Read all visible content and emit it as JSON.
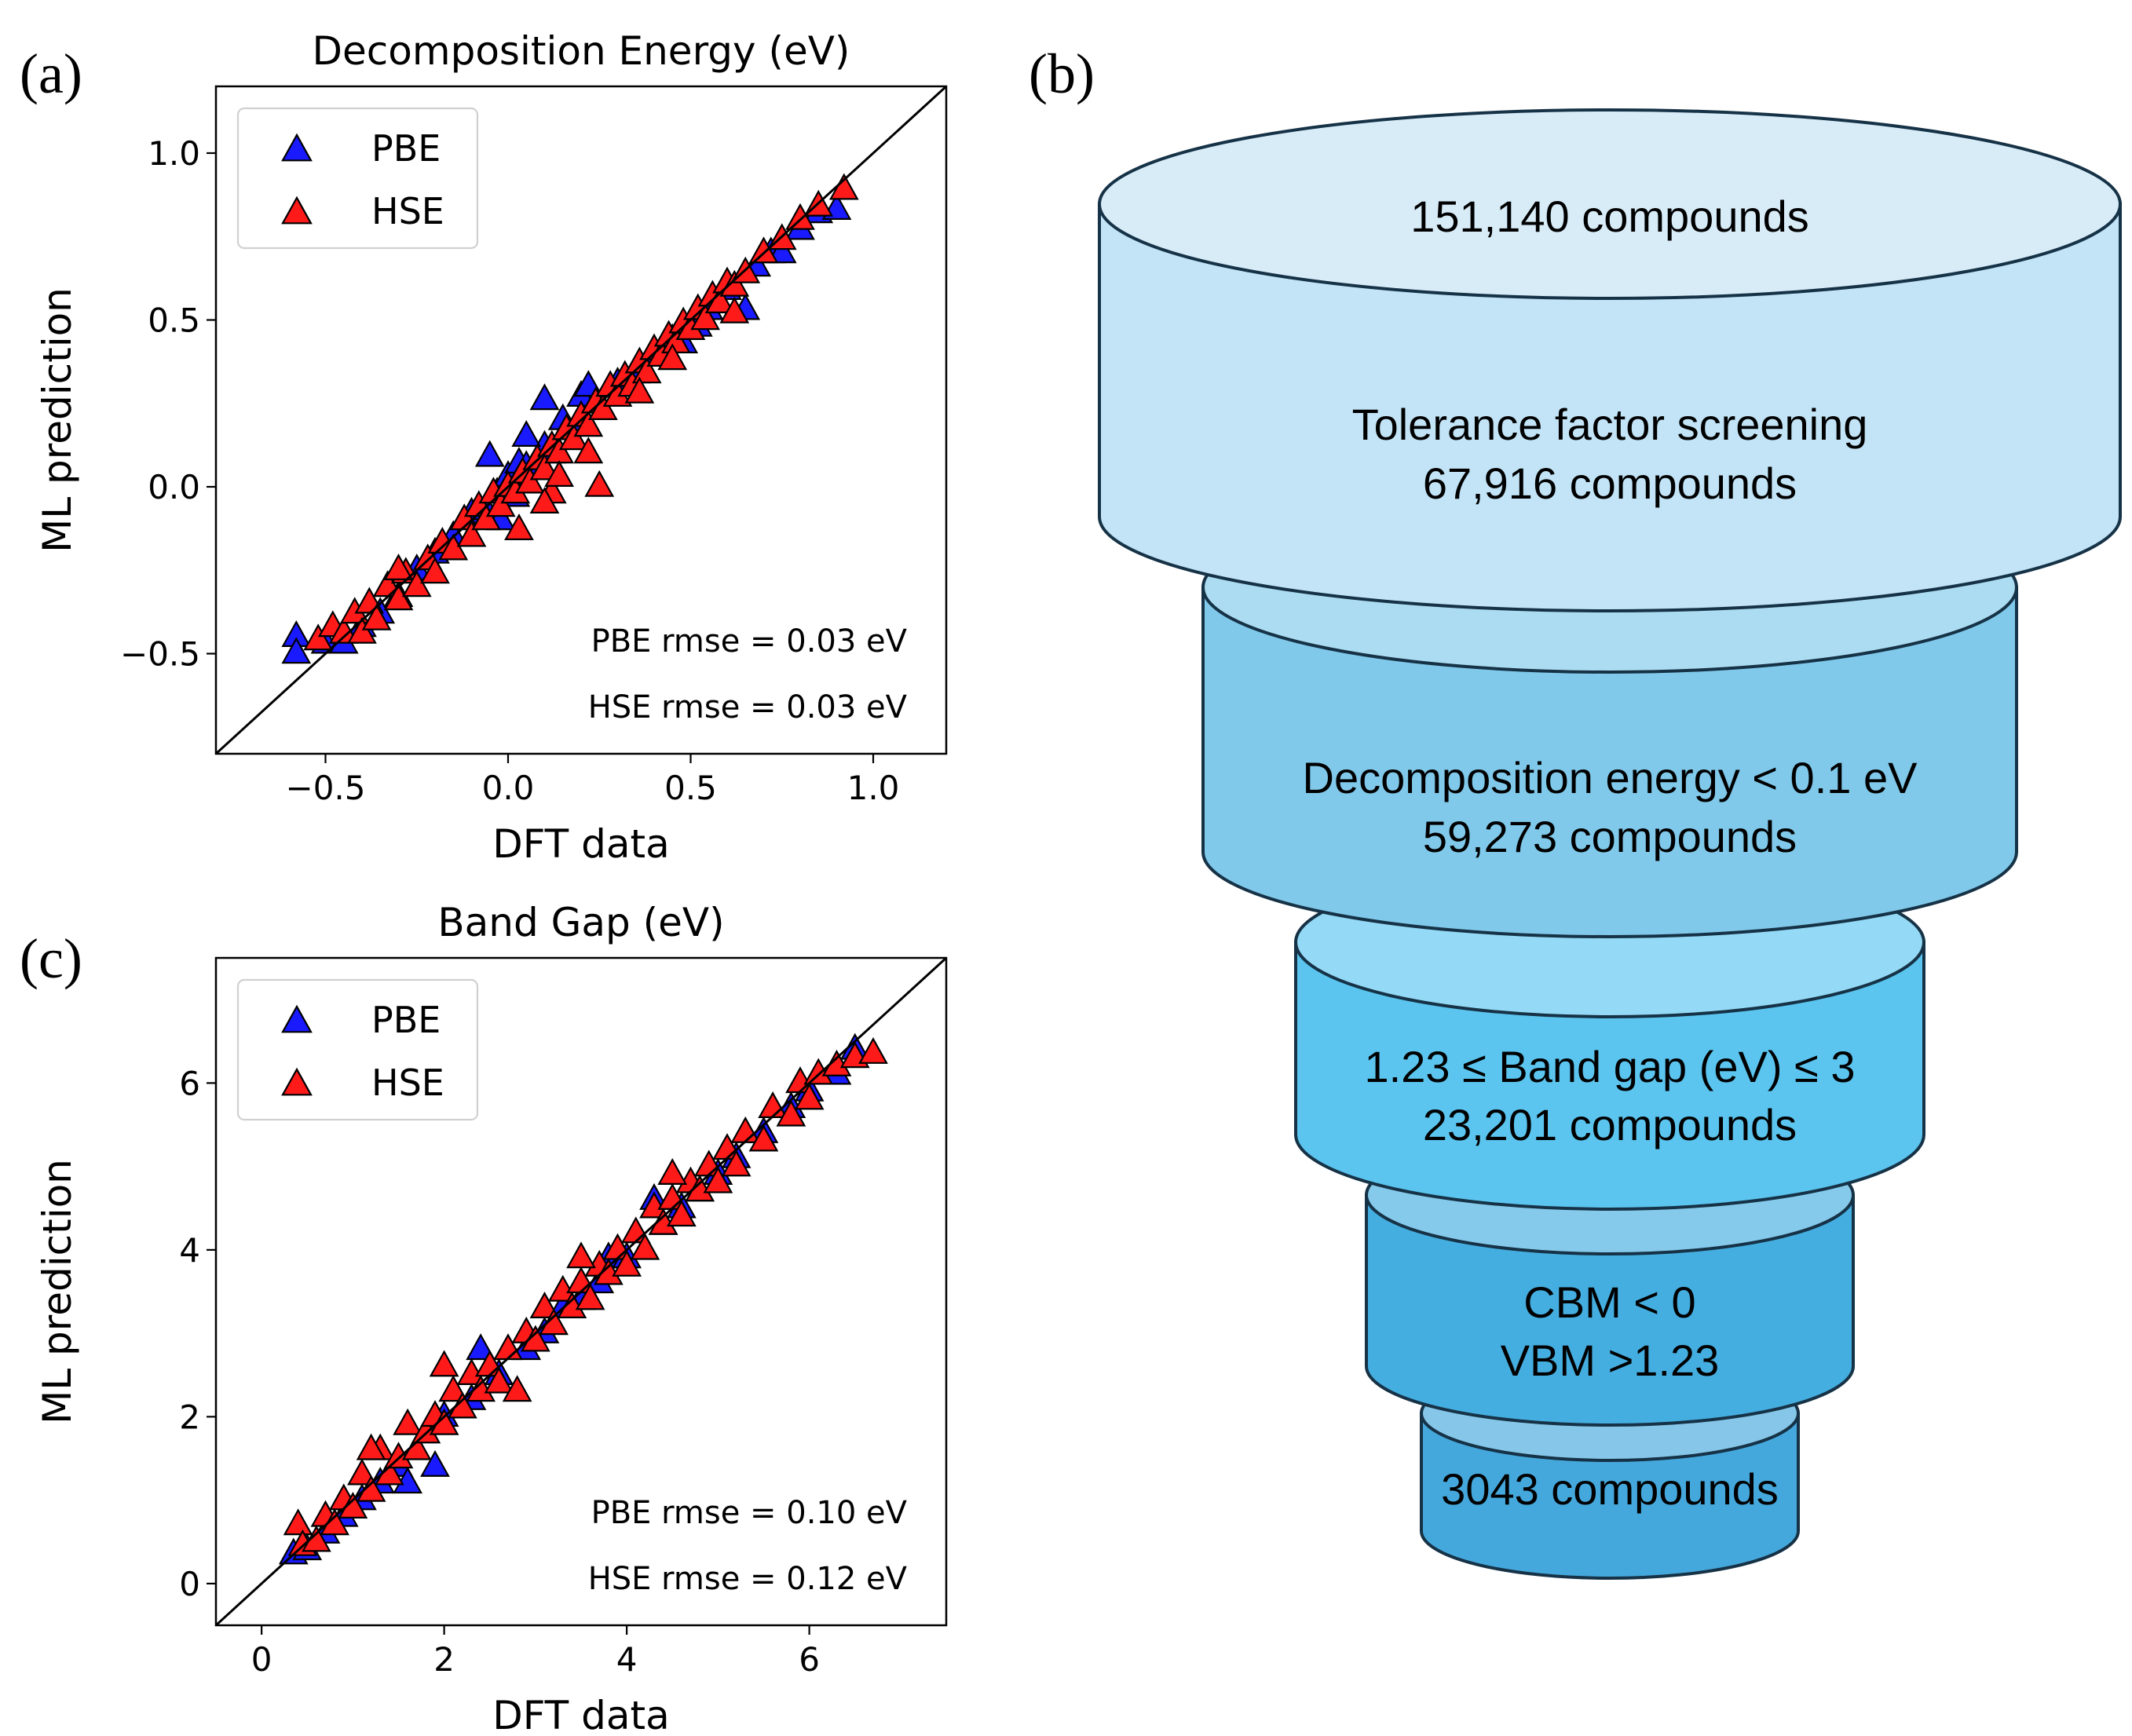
{
  "panel_labels": {
    "a": "(a)",
    "b": "(b)",
    "c": "(c)"
  },
  "chart_data": [
    {
      "id": "a",
      "type": "scatter",
      "title": "Decomposition Energy (eV)",
      "xlabel": "DFT data",
      "ylabel": "ML prediction",
      "xlim": [
        -0.8,
        1.2
      ],
      "ylim": [
        -0.8,
        1.2
      ],
      "xticks": [
        -0.5,
        0.0,
        0.5,
        1.0
      ],
      "xtick_labels": [
        "−0.5",
        "0.0",
        "0.5",
        "1.0"
      ],
      "yticks": [
        -0.5,
        0.0,
        0.5,
        1.0
      ],
      "ytick_labels": [
        "−0.5",
        "0.0",
        "0.5",
        "1.0"
      ],
      "diagonal": true,
      "legend": {
        "placement": "top-left",
        "entries": [
          "PBE",
          "HSE"
        ]
      },
      "annotations": [
        "PBE rmse = 0.03 eV",
        "HSE rmse = 0.03 eV"
      ],
      "series": [
        {
          "name": "PBE",
          "color": "#1a1aff",
          "points": [
            [
              -0.58,
              -0.45
            ],
            [
              -0.58,
              -0.5
            ],
            [
              -0.5,
              -0.47
            ],
            [
              -0.45,
              -0.47
            ],
            [
              -0.4,
              -0.42
            ],
            [
              -0.35,
              -0.38
            ],
            [
              -0.3,
              -0.33
            ],
            [
              -0.25,
              -0.25
            ],
            [
              -0.2,
              -0.2
            ],
            [
              -0.15,
              -0.15
            ],
            [
              -0.1,
              -0.08
            ],
            [
              -0.06,
              -0.07
            ],
            [
              -0.03,
              -0.02
            ],
            [
              -0.05,
              0.09
            ],
            [
              0.0,
              0.03
            ],
            [
              0.03,
              0.07
            ],
            [
              0.05,
              0.06
            ],
            [
              0.1,
              0.12
            ],
            [
              0.1,
              0.26
            ],
            [
              0.05,
              0.15
            ],
            [
              0.15,
              0.2
            ],
            [
              0.2,
              0.19
            ],
            [
              0.2,
              0.27
            ],
            [
              0.22,
              0.3
            ],
            [
              0.3,
              0.31
            ],
            [
              0.35,
              0.34
            ],
            [
              0.4,
              0.4
            ],
            [
              0.45,
              0.44
            ],
            [
              0.48,
              0.43
            ],
            [
              0.52,
              0.48
            ],
            [
              0.55,
              0.53
            ],
            [
              0.6,
              0.59
            ],
            [
              0.65,
              0.53
            ],
            [
              0.68,
              0.66
            ],
            [
              0.72,
              0.7
            ],
            [
              0.75,
              0.7
            ],
            [
              0.8,
              0.77
            ],
            [
              0.85,
              0.82
            ],
            [
              0.9,
              0.83
            ],
            [
              -0.02,
              -0.1
            ],
            [
              0.02,
              -0.03
            ],
            [
              0.12,
              0.1
            ]
          ]
        },
        {
          "name": "HSE",
          "color": "#ff1a1a",
          "points": [
            [
              -0.52,
              -0.46
            ],
            [
              -0.48,
              -0.42
            ],
            [
              -0.45,
              -0.44
            ],
            [
              -0.42,
              -0.38
            ],
            [
              -0.4,
              -0.44
            ],
            [
              -0.38,
              -0.35
            ],
            [
              -0.36,
              -0.4
            ],
            [
              -0.33,
              -0.3
            ],
            [
              -0.3,
              -0.34
            ],
            [
              -0.28,
              -0.26
            ],
            [
              -0.25,
              -0.3
            ],
            [
              -0.22,
              -0.22
            ],
            [
              -0.2,
              -0.26
            ],
            [
              -0.18,
              -0.17
            ],
            [
              -0.15,
              -0.19
            ],
            [
              -0.12,
              -0.1
            ],
            [
              -0.1,
              -0.15
            ],
            [
              -0.08,
              -0.06
            ],
            [
              -0.06,
              -0.1
            ],
            [
              -0.04,
              -0.02
            ],
            [
              -0.02,
              -0.06
            ],
            [
              0.0,
              0.0
            ],
            [
              0.02,
              -0.02
            ],
            [
              0.04,
              0.04
            ],
            [
              0.06,
              0.01
            ],
            [
              0.08,
              0.08
            ],
            [
              0.1,
              0.05
            ],
            [
              0.12,
              0.12
            ],
            [
              0.14,
              0.1
            ],
            [
              0.16,
              0.17
            ],
            [
              0.18,
              0.14
            ],
            [
              0.2,
              0.21
            ],
            [
              0.22,
              0.18
            ],
            [
              0.24,
              0.25
            ],
            [
              0.26,
              0.23
            ],
            [
              0.28,
              0.3
            ],
            [
              0.3,
              0.27
            ],
            [
              0.32,
              0.33
            ],
            [
              0.34,
              0.3
            ],
            [
              0.36,
              0.37
            ],
            [
              0.38,
              0.34
            ],
            [
              0.4,
              0.41
            ],
            [
              0.42,
              0.39
            ],
            [
              0.44,
              0.45
            ],
            [
              0.46,
              0.43
            ],
            [
              0.48,
              0.49
            ],
            [
              0.5,
              0.47
            ],
            [
              0.52,
              0.53
            ],
            [
              0.54,
              0.5
            ],
            [
              0.56,
              0.57
            ],
            [
              0.58,
              0.55
            ],
            [
              0.6,
              0.61
            ],
            [
              0.62,
              0.6
            ],
            [
              0.65,
              0.64
            ],
            [
              0.7,
              0.7
            ],
            [
              0.75,
              0.74
            ],
            [
              0.8,
              0.8
            ],
            [
              0.85,
              0.84
            ],
            [
              0.92,
              0.89
            ],
            [
              0.12,
              -0.02
            ],
            [
              0.22,
              0.1
            ],
            [
              0.25,
              0.0
            ],
            [
              0.03,
              -0.13
            ],
            [
              0.14,
              0.03
            ],
            [
              -0.3,
              -0.25
            ],
            [
              0.45,
              0.38
            ],
            [
              0.62,
              0.52
            ],
            [
              0.1,
              -0.05
            ],
            [
              0.36,
              0.28
            ]
          ]
        }
      ]
    },
    {
      "id": "c",
      "type": "scatter",
      "title": "Band Gap (eV)",
      "xlabel": "DFT data",
      "ylabel": "ML prediction",
      "xlim": [
        -0.5,
        7.5
      ],
      "ylim": [
        -0.5,
        7.5
      ],
      "xticks": [
        0,
        2,
        4,
        6
      ],
      "xtick_labels": [
        "0",
        "2",
        "4",
        "6"
      ],
      "yticks": [
        0,
        2,
        4,
        6
      ],
      "ytick_labels": [
        "0",
        "2",
        "4",
        "6"
      ],
      "diagonal": true,
      "legend": {
        "placement": "top-left",
        "entries": [
          "PBE",
          "HSE"
        ]
      },
      "annotations": [
        "PBE rmse = 0.10 eV",
        "HSE rmse = 0.12 eV"
      ],
      "series": [
        {
          "name": "PBE",
          "color": "#1a1aff",
          "points": [
            [
              0.35,
              0.35
            ],
            [
              0.5,
              0.4
            ],
            [
              0.7,
              0.6
            ],
            [
              0.9,
              0.8
            ],
            [
              1.1,
              1.0
            ],
            [
              1.3,
              1.2
            ],
            [
              1.5,
              1.4
            ],
            [
              1.6,
              1.2
            ],
            [
              1.9,
              1.4
            ],
            [
              2.0,
              2.0
            ],
            [
              2.3,
              2.2
            ],
            [
              2.4,
              2.8
            ],
            [
              2.6,
              2.5
            ],
            [
              2.9,
              2.8
            ],
            [
              3.1,
              3.0
            ],
            [
              3.3,
              3.3
            ],
            [
              3.5,
              3.4
            ],
            [
              3.7,
              3.6
            ],
            [
              3.8,
              3.9
            ],
            [
              4.0,
              3.9
            ],
            [
              4.3,
              4.6
            ],
            [
              4.4,
              4.3
            ],
            [
              4.6,
              4.5
            ],
            [
              4.8,
              4.7
            ],
            [
              5.0,
              4.9
            ],
            [
              5.2,
              5.1
            ],
            [
              5.5,
              5.4
            ],
            [
              5.8,
              5.7
            ],
            [
              6.0,
              5.9
            ],
            [
              6.3,
              6.1
            ],
            [
              6.5,
              6.4
            ]
          ]
        },
        {
          "name": "HSE",
          "color": "#ff1a1a",
          "points": [
            [
              0.4,
              0.7
            ],
            [
              0.45,
              0.45
            ],
            [
              0.6,
              0.5
            ],
            [
              0.7,
              0.8
            ],
            [
              0.8,
              0.7
            ],
            [
              0.9,
              1.0
            ],
            [
              1.0,
              0.9
            ],
            [
              1.1,
              1.3
            ],
            [
              1.2,
              1.1
            ],
            [
              1.3,
              1.6
            ],
            [
              1.4,
              1.3
            ],
            [
              1.5,
              1.5
            ],
            [
              1.6,
              1.9
            ],
            [
              1.7,
              1.6
            ],
            [
              1.8,
              1.8
            ],
            [
              1.9,
              2.0
            ],
            [
              2.0,
              1.9
            ],
            [
              2.1,
              2.3
            ],
            [
              2.2,
              2.1
            ],
            [
              2.3,
              2.5
            ],
            [
              2.4,
              2.3
            ],
            [
              2.5,
              2.6
            ],
            [
              2.6,
              2.4
            ],
            [
              2.7,
              2.8
            ],
            [
              2.8,
              2.3
            ],
            [
              2.9,
              3.0
            ],
            [
              3.0,
              2.9
            ],
            [
              3.1,
              3.3
            ],
            [
              3.2,
              3.1
            ],
            [
              3.3,
              3.5
            ],
            [
              3.4,
              3.3
            ],
            [
              3.5,
              3.6
            ],
            [
              3.6,
              3.4
            ],
            [
              3.7,
              3.8
            ],
            [
              3.8,
              3.7
            ],
            [
              3.9,
              4.0
            ],
            [
              4.0,
              3.8
            ],
            [
              4.1,
              4.2
            ],
            [
              4.2,
              4.0
            ],
            [
              4.3,
              4.5
            ],
            [
              4.4,
              4.3
            ],
            [
              4.5,
              4.6
            ],
            [
              4.6,
              4.4
            ],
            [
              4.7,
              4.8
            ],
            [
              4.8,
              4.7
            ],
            [
              4.9,
              5.0
            ],
            [
              5.0,
              4.8
            ],
            [
              5.1,
              5.2
            ],
            [
              5.2,
              5.0
            ],
            [
              5.3,
              5.4
            ],
            [
              5.5,
              5.3
            ],
            [
              5.6,
              5.7
            ],
            [
              5.8,
              5.6
            ],
            [
              5.9,
              6.0
            ],
            [
              6.0,
              5.8
            ],
            [
              6.1,
              6.1
            ],
            [
              6.3,
              6.2
            ],
            [
              6.5,
              6.3
            ],
            [
              6.7,
              6.35
            ],
            [
              2.0,
              2.6
            ],
            [
              1.2,
              1.6
            ],
            [
              3.5,
              3.9
            ],
            [
              4.5,
              4.9
            ]
          ]
        }
      ]
    }
  ],
  "funnel": {
    "stages": [
      {
        "lines": [
          "151,140 compounds"
        ],
        "color": "#d8ecf8"
      },
      {
        "lines": [
          "Tolerance factor screening",
          "67,916 compounds"
        ],
        "color": "#c2e4f6"
      },
      {
        "lines": [
          "Decomposition energy < 0.1 eV",
          "59,273 compounds"
        ],
        "color": "#80c9ea"
      },
      {
        "lines": [
          "1.23 ≤ Band gap (eV) ≤ 3",
          "23,201 compounds"
        ],
        "color": "#5bc5ef"
      },
      {
        "lines": [
          "CBM < 0",
          "VBM >1.23"
        ],
        "color": "#45aee0"
      },
      {
        "lines": [
          "3043 compounds"
        ],
        "color": "#45a8dc"
      }
    ]
  }
}
